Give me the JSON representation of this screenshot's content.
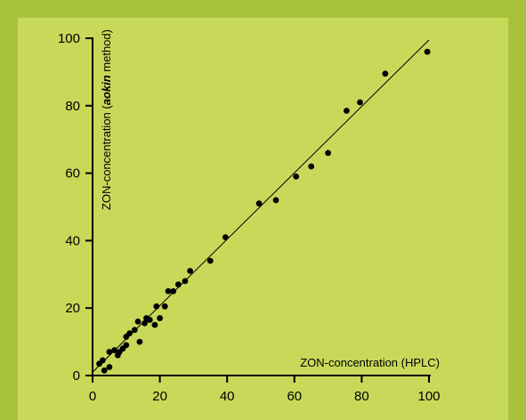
{
  "chart_data": {
    "type": "scatter",
    "xlabel": "ZON-concentration (HPLC)",
    "ylabel_parts": [
      "ZON-concentration (",
      "aokin",
      " method)"
    ],
    "xlim": [
      0,
      100
    ],
    "ylim": [
      0,
      100
    ],
    "xticks": [
      0,
      20,
      40,
      60,
      80,
      100
    ],
    "yticks": [
      0,
      20,
      40,
      60,
      80,
      100
    ],
    "grid": false,
    "fit_line": {
      "x": [
        0,
        100
      ],
      "y": [
        1,
        99.5
      ]
    },
    "points": [
      {
        "x": 2.0,
        "y": 3.5
      },
      {
        "x": 3.0,
        "y": 4.5
      },
      {
        "x": 3.5,
        "y": 1.5
      },
      {
        "x": 5.0,
        "y": 2.5
      },
      {
        "x": 5.0,
        "y": 7.0
      },
      {
        "x": 6.5,
        "y": 7.5
      },
      {
        "x": 7.5,
        "y": 6.0
      },
      {
        "x": 8.0,
        "y": 7.0
      },
      {
        "x": 9.0,
        "y": 8.0
      },
      {
        "x": 10.0,
        "y": 9.0
      },
      {
        "x": 10.0,
        "y": 11.5
      },
      {
        "x": 11.0,
        "y": 12.5
      },
      {
        "x": 12.5,
        "y": 13.5
      },
      {
        "x": 13.5,
        "y": 16.0
      },
      {
        "x": 14.0,
        "y": 10.0
      },
      {
        "x": 15.5,
        "y": 15.5
      },
      {
        "x": 16.0,
        "y": 17.0
      },
      {
        "x": 17.0,
        "y": 16.5
      },
      {
        "x": 18.5,
        "y": 15.0
      },
      {
        "x": 19.0,
        "y": 20.5
      },
      {
        "x": 20.0,
        "y": 17.0
      },
      {
        "x": 21.5,
        "y": 20.5
      },
      {
        "x": 22.5,
        "y": 25.0
      },
      {
        "x": 24.0,
        "y": 25.0
      },
      {
        "x": 25.5,
        "y": 27.0
      },
      {
        "x": 27.5,
        "y": 28.0
      },
      {
        "x": 29.0,
        "y": 31.0
      },
      {
        "x": 35.0,
        "y": 34.0
      },
      {
        "x": 39.5,
        "y": 41.0
      },
      {
        "x": 49.5,
        "y": 51.0
      },
      {
        "x": 54.5,
        "y": 52.0
      },
      {
        "x": 60.5,
        "y": 59.0
      },
      {
        "x": 65.0,
        "y": 62.0
      },
      {
        "x": 70.0,
        "y": 66.0
      },
      {
        "x": 75.5,
        "y": 78.5
      },
      {
        "x": 79.5,
        "y": 81.0
      },
      {
        "x": 87.0,
        "y": 89.5
      },
      {
        "x": 99.5,
        "y": 96.0
      }
    ]
  }
}
